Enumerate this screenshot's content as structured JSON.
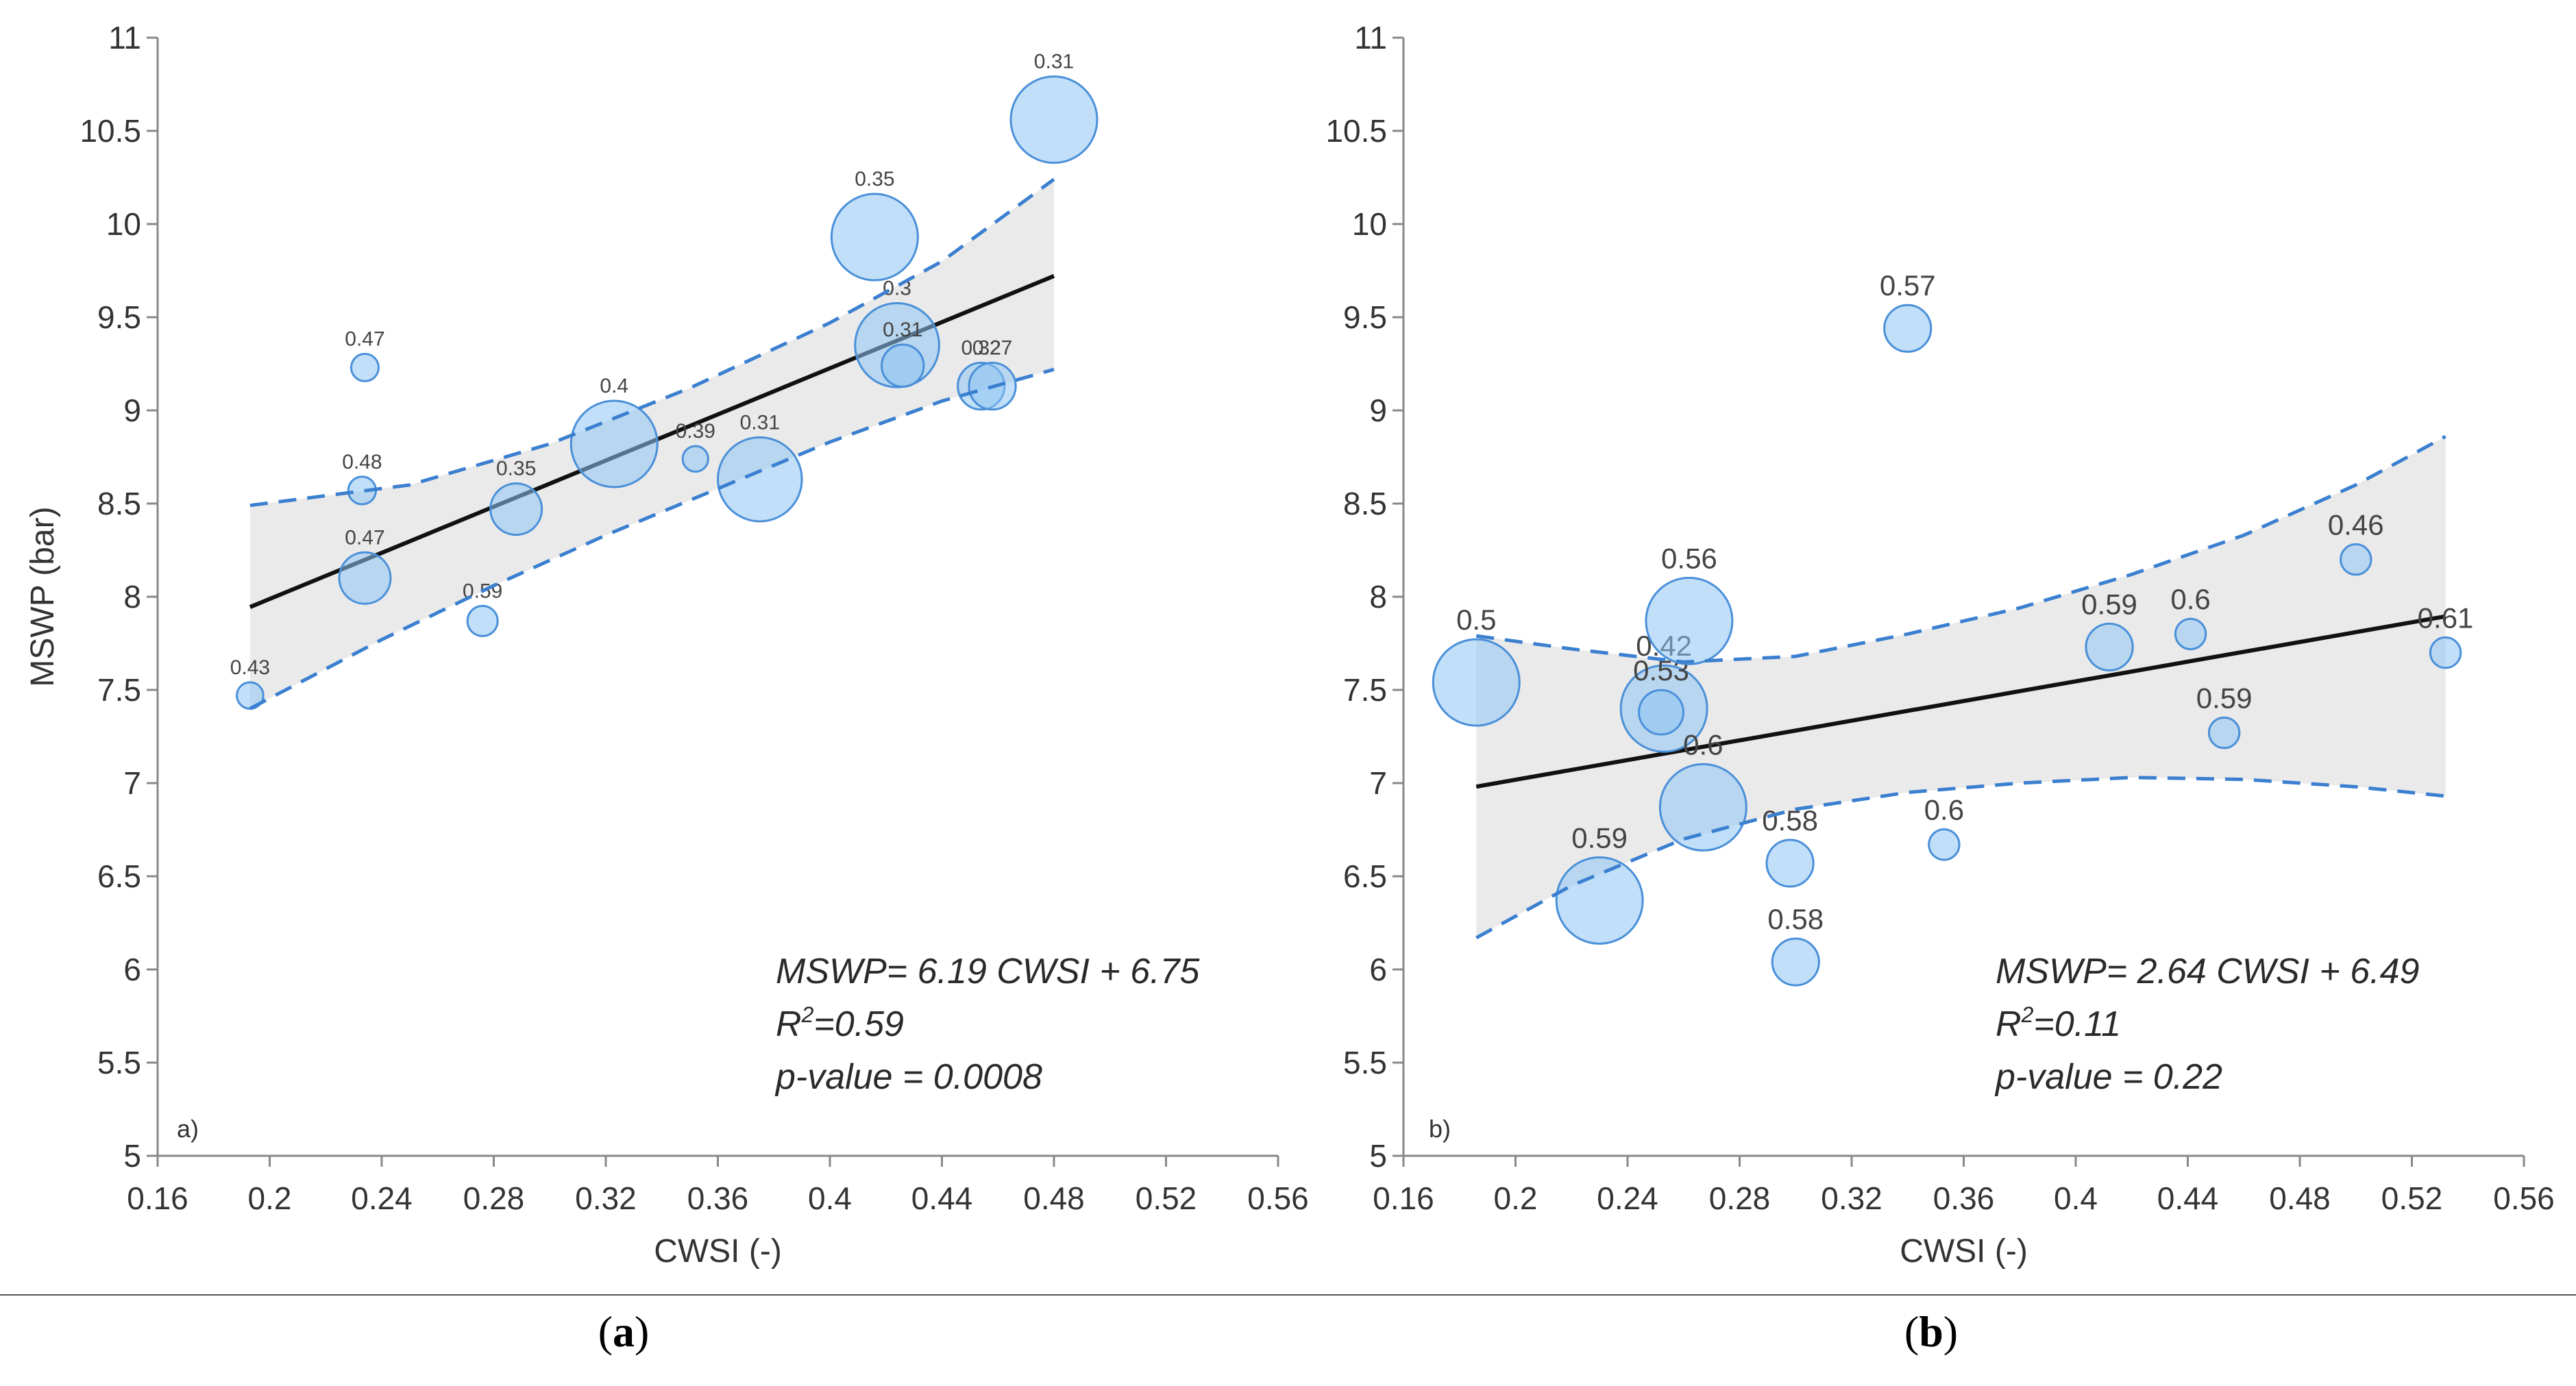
{
  "chart_data": [
    {
      "type": "scatter",
      "panel_letter": "a)",
      "caption_pre": "(",
      "caption_letter": "a",
      "caption_post": ")",
      "xlabel": "CWSI (-)",
      "ylabel": "MSWP (bar)",
      "xlim": [
        0.16,
        0.56
      ],
      "ylim": [
        5,
        11
      ],
      "xticks": [
        "0.16",
        "0.2",
        "0.24",
        "0.28",
        "0.32",
        "0.36",
        "0.4",
        "0.44",
        "0.48",
        "0.52",
        "0.56"
      ],
      "yticks": [
        "5",
        "5.5",
        "6",
        "6.5",
        "7",
        "7.5",
        "8",
        "8.5",
        "9",
        "9.5",
        "10",
        "10.5",
        "11"
      ],
      "label_size": "small",
      "colors": {
        "fill": "#8ec5f2",
        "stroke": "#4a90d9",
        "band": "#e6e6e6",
        "fit": "#111111",
        "ci": "#3a7fd0"
      },
      "fit": {
        "slope": 6.19,
        "intercept": 6.75,
        "x_range": [
          0.193,
          0.48
        ]
      },
      "ci_upper": [
        [
          0.193,
          8.49
        ],
        [
          0.25,
          8.6
        ],
        [
          0.3,
          8.82
        ],
        [
          0.35,
          9.12
        ],
        [
          0.4,
          9.47
        ],
        [
          0.44,
          9.8
        ],
        [
          0.48,
          10.24
        ]
      ],
      "ci_lower": [
        [
          0.193,
          7.4
        ],
        [
          0.24,
          7.77
        ],
        [
          0.28,
          8.06
        ],
        [
          0.32,
          8.33
        ],
        [
          0.36,
          8.58
        ],
        [
          0.4,
          8.83
        ],
        [
          0.44,
          9.05
        ],
        [
          0.48,
          9.22
        ]
      ],
      "points": [
        {
          "x": 0.193,
          "y": 7.47,
          "size": 0.43,
          "label": "0.43"
        },
        {
          "x": 0.234,
          "y": 9.23,
          "size": 0.47,
          "label": "0.47"
        },
        {
          "x": 0.233,
          "y": 8.57,
          "size": 0.48,
          "label": "0.48"
        },
        {
          "x": 0.234,
          "y": 8.1,
          "size": 1.5,
          "label": "0.47"
        },
        {
          "x": 0.276,
          "y": 7.87,
          "size": 0.59,
          "label": "0.59"
        },
        {
          "x": 0.288,
          "y": 8.47,
          "size": 1.5,
          "label": "0.35"
        },
        {
          "x": 0.323,
          "y": 8.82,
          "size": 3.0,
          "label": "0.4"
        },
        {
          "x": 0.352,
          "y": 8.74,
          "size": 0.39,
          "label": "0.39"
        },
        {
          "x": 0.375,
          "y": 8.63,
          "size": 2.9,
          "label": "0.31"
        },
        {
          "x": 0.416,
          "y": 9.93,
          "size": 3.0,
          "label": "0.35"
        },
        {
          "x": 0.424,
          "y": 9.35,
          "size": 2.9,
          "label": "0.3"
        },
        {
          "x": 0.426,
          "y": 9.24,
          "size": 1.1,
          "label": "0.31"
        },
        {
          "x": 0.454,
          "y": 9.13,
          "size": 1.3,
          "label": "0.32"
        },
        {
          "x": 0.458,
          "y": 9.13,
          "size": 1.3,
          "label": "0.27"
        },
        {
          "x": 0.48,
          "y": 10.56,
          "size": 3.0,
          "label": "0.31"
        }
      ],
      "equation": "MSWP= 6.19 CWSI + 6.75",
      "r2_label": "R",
      "r2_sup": "2",
      "r2_value": "=0.59",
      "p_value": "p-value = 0.0008"
    },
    {
      "type": "scatter",
      "panel_letter": "b)",
      "caption_pre": "(",
      "caption_letter": "b",
      "caption_post": ")",
      "xlabel": "CWSI (-)",
      "ylabel": "",
      "xlim": [
        0.16,
        0.56
      ],
      "ylim": [
        5,
        11
      ],
      "xticks": [
        "0.16",
        "0.2",
        "0.24",
        "0.28",
        "0.32",
        "0.36",
        "0.4",
        "0.44",
        "0.48",
        "0.52",
        "0.56"
      ],
      "yticks": [
        "5",
        "5.5",
        "6",
        "6.5",
        "7",
        "7.5",
        "8",
        "8.5",
        "9",
        "9.5",
        "10",
        "10.5",
        "11"
      ],
      "label_size": "large",
      "colors": {
        "fill": "#8ec5f2",
        "stroke": "#4a90d9",
        "band": "#e6e6e6",
        "fit": "#111111",
        "ci": "#3a7fd0"
      },
      "fit": {
        "slope": 2.64,
        "intercept": 6.49,
        "x_range": [
          0.186,
          0.532
        ]
      },
      "ci_upper": [
        [
          0.186,
          7.79
        ],
        [
          0.22,
          7.72
        ],
        [
          0.26,
          7.65
        ],
        [
          0.3,
          7.68
        ],
        [
          0.34,
          7.8
        ],
        [
          0.38,
          7.94
        ],
        [
          0.42,
          8.12
        ],
        [
          0.46,
          8.33
        ],
        [
          0.5,
          8.6
        ],
        [
          0.532,
          8.86
        ]
      ],
      "ci_lower": [
        [
          0.186,
          6.17
        ],
        [
          0.22,
          6.45
        ],
        [
          0.26,
          6.7
        ],
        [
          0.3,
          6.86
        ],
        [
          0.34,
          6.95
        ],
        [
          0.38,
          7.0
        ],
        [
          0.42,
          7.03
        ],
        [
          0.46,
          7.02
        ],
        [
          0.5,
          6.98
        ],
        [
          0.532,
          6.93
        ]
      ],
      "points": [
        {
          "x": 0.186,
          "y": 7.54,
          "size": 3.0,
          "label": "0.5"
        },
        {
          "x": 0.23,
          "y": 6.37,
          "size": 3.0,
          "label": "0.59"
        },
        {
          "x": 0.253,
          "y": 7.4,
          "size": 3.0,
          "label": "0.42"
        },
        {
          "x": 0.252,
          "y": 7.38,
          "size": 1.2,
          "label": "0.53"
        },
        {
          "x": 0.262,
          "y": 7.87,
          "size": 3.0,
          "label": "0.56"
        },
        {
          "x": 0.267,
          "y": 6.87,
          "size": 3.0,
          "label": "0.6"
        },
        {
          "x": 0.298,
          "y": 6.57,
          "size": 1.3,
          "label": "0.58"
        },
        {
          "x": 0.3,
          "y": 6.04,
          "size": 1.3,
          "label": "0.58"
        },
        {
          "x": 0.34,
          "y": 9.44,
          "size": 1.3,
          "label": "0.57"
        },
        {
          "x": 0.353,
          "y": 6.67,
          "size": 0.6,
          "label": "0.6"
        },
        {
          "x": 0.412,
          "y": 7.73,
          "size": 1.3,
          "label": "0.59"
        },
        {
          "x": 0.441,
          "y": 7.8,
          "size": 0.6,
          "label": "0.6"
        },
        {
          "x": 0.453,
          "y": 7.27,
          "size": 0.6,
          "label": "0.59"
        },
        {
          "x": 0.5,
          "y": 8.2,
          "size": 0.6,
          "label": "0.46"
        },
        {
          "x": 0.532,
          "y": 7.7,
          "size": 0.6,
          "label": "0.61"
        }
      ],
      "equation": "MSWP= 2.64 CWSI + 6.49",
      "r2_label": "R",
      "r2_sup": "2",
      "r2_value": "=0.11",
      "p_value": "p-value = 0.22"
    }
  ]
}
